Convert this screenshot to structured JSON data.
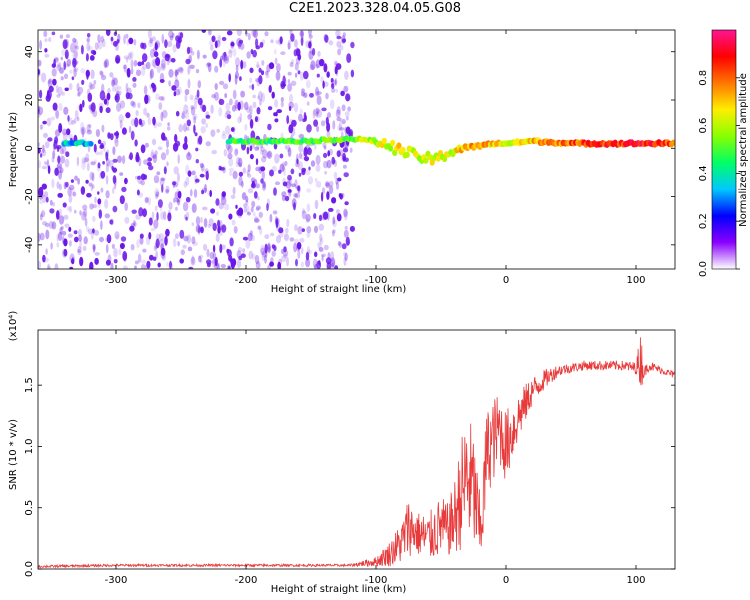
{
  "title": "C2E1.2023.328.04.05.G08",
  "colors": {
    "snr_line": "#e83a3a",
    "spectrogram_cloud": "#6a16e8",
    "axis": "#000000",
    "colorbar_stops": [
      "#ffffff",
      "#8a00ff",
      "#0000ff",
      "#00c8ff",
      "#00ff66",
      "#88ff00",
      "#ffee00",
      "#ff7700",
      "#ff0000",
      "#ff1493"
    ]
  },
  "chart_data": [
    {
      "type": "heatmap",
      "title": "",
      "xlabel": "Height of straight line (km)",
      "ylabel": "Frequency (Hz)",
      "xlim": [
        -360,
        130
      ],
      "ylim": [
        -50,
        49
      ],
      "xticks": [
        "-300",
        "-200",
        "-100",
        "0",
        "100"
      ],
      "xtick_values": [
        -300,
        -200,
        -100,
        0,
        100
      ],
      "yticks": [
        "-40",
        "-20",
        "0",
        "20",
        "40"
      ],
      "ytick_values": [
        -40,
        -20,
        0,
        20,
        40
      ],
      "colorbar": {
        "label": "Normalized spectral amplitude",
        "range": [
          0.0,
          1.0
        ],
        "ticks": [
          "0.0",
          "0.2",
          "0.4",
          "0.6",
          "0.8"
        ],
        "tick_values": [
          0.0,
          0.2,
          0.4,
          0.6,
          0.8
        ]
      },
      "noise_cloud": {
        "x_range": [
          -360,
          -118
        ],
        "freq_range": [
          -50,
          49
        ],
        "amplitude": 0.12
      },
      "ridge": {
        "x": [
          -340,
          -210,
          -150,
          -120,
          -100,
          -85,
          -70,
          -55,
          -45,
          -35,
          -20,
          -10,
          0,
          20,
          50,
          80,
          100,
          130
        ],
        "freq": [
          2,
          3,
          3,
          4,
          3,
          0,
          -3,
          -5,
          -2,
          0,
          1,
          2,
          2,
          3,
          2,
          2,
          2,
          2
        ],
        "amplitude": [
          0.35,
          0.45,
          0.5,
          0.55,
          0.6,
          0.65,
          0.6,
          0.65,
          0.6,
          0.7,
          0.75,
          0.7,
          0.65,
          0.7,
          0.8,
          0.85,
          0.9,
          0.8
        ]
      }
    },
    {
      "type": "line",
      "title": "",
      "xlabel": "Height of straight line (km)",
      "ylabel": "SNR (10 * v/v)",
      "y_multiplier": "(x10⁴)",
      "xlim": [
        -360,
        130
      ],
      "ylim": [
        0,
        1.95
      ],
      "xticks": [
        "-300",
        "-200",
        "-100",
        "0",
        "100"
      ],
      "xtick_values": [
        -300,
        -200,
        -100,
        0,
        100
      ],
      "yticks": [
        "0.0",
        "0.5",
        "1.0",
        "1.5"
      ],
      "ytick_values": [
        0.0,
        0.5,
        1.0,
        1.5
      ],
      "series": [
        {
          "x": [
            -360,
            -300,
            -250,
            -200,
            -150,
            -120,
            -100,
            -90,
            -80,
            -75,
            -70,
            -60,
            -50,
            -45,
            -40,
            -35,
            -30,
            -25,
            -20,
            -17,
            -15,
            -10,
            -5,
            0,
            10,
            20,
            30,
            40,
            50,
            60,
            70,
            80,
            90,
            100,
            104,
            106,
            110,
            120,
            130
          ],
          "values": [
            0.02,
            0.03,
            0.03,
            0.03,
            0.03,
            0.03,
            0.06,
            0.12,
            0.22,
            0.35,
            0.3,
            0.25,
            0.35,
            0.32,
            0.4,
            0.6,
            0.75,
            0.65,
            0.3,
            0.6,
            0.95,
            1.05,
            1.15,
            1.0,
            1.25,
            1.45,
            1.55,
            1.62,
            1.64,
            1.66,
            1.66,
            1.66,
            1.66,
            1.64,
            1.72,
            1.6,
            1.66,
            1.62,
            1.58
          ],
          "noise": [
            0.01,
            0.01,
            0.01,
            0.01,
            0.01,
            0.01,
            0.04,
            0.1,
            0.18,
            0.25,
            0.18,
            0.2,
            0.25,
            0.22,
            0.3,
            0.45,
            0.55,
            0.5,
            0.3,
            0.4,
            0.35,
            0.35,
            0.3,
            0.3,
            0.2,
            0.12,
            0.08,
            0.05,
            0.04,
            0.04,
            0.04,
            0.04,
            0.04,
            0.05,
            0.25,
            0.05,
            0.04,
            0.03,
            0.03
          ]
        }
      ]
    }
  ]
}
